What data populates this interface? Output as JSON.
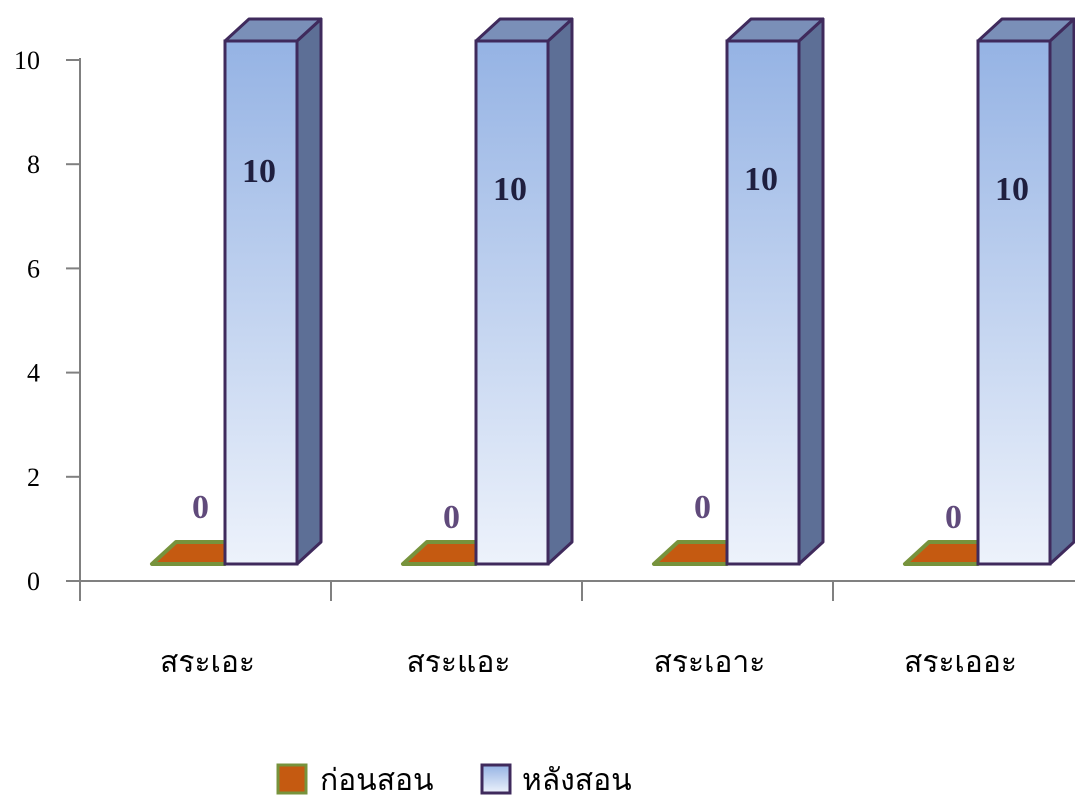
{
  "chart_data": {
    "type": "bar",
    "categories": [
      "สระเอะ",
      "สระแอะ",
      "สระเอาะ",
      "สระเออะ"
    ],
    "series": [
      {
        "name": "ก่อนสอน",
        "values": [
          0,
          0,
          0,
          0
        ]
      },
      {
        "name": "หลังสอน",
        "values": [
          10,
          10,
          10,
          10
        ]
      }
    ],
    "title": "",
    "xlabel": "",
    "ylabel": "",
    "ylim": [
      0,
      10
    ],
    "yticks": [
      0,
      2,
      4,
      6,
      8,
      10
    ],
    "grid": false,
    "legend": "bottom",
    "colors": {
      "before_front": "#c55a11",
      "before_edge": "#77933c",
      "after_front_top": "#95b3e4",
      "after_front_bottom": "#edf2fb",
      "after_side": "#5d6f96",
      "after_top": "#7a8fb8",
      "after_edge": "#3f2a5c",
      "value_label_before": "#604a7b",
      "value_label_after": "#1f1f3f"
    }
  }
}
